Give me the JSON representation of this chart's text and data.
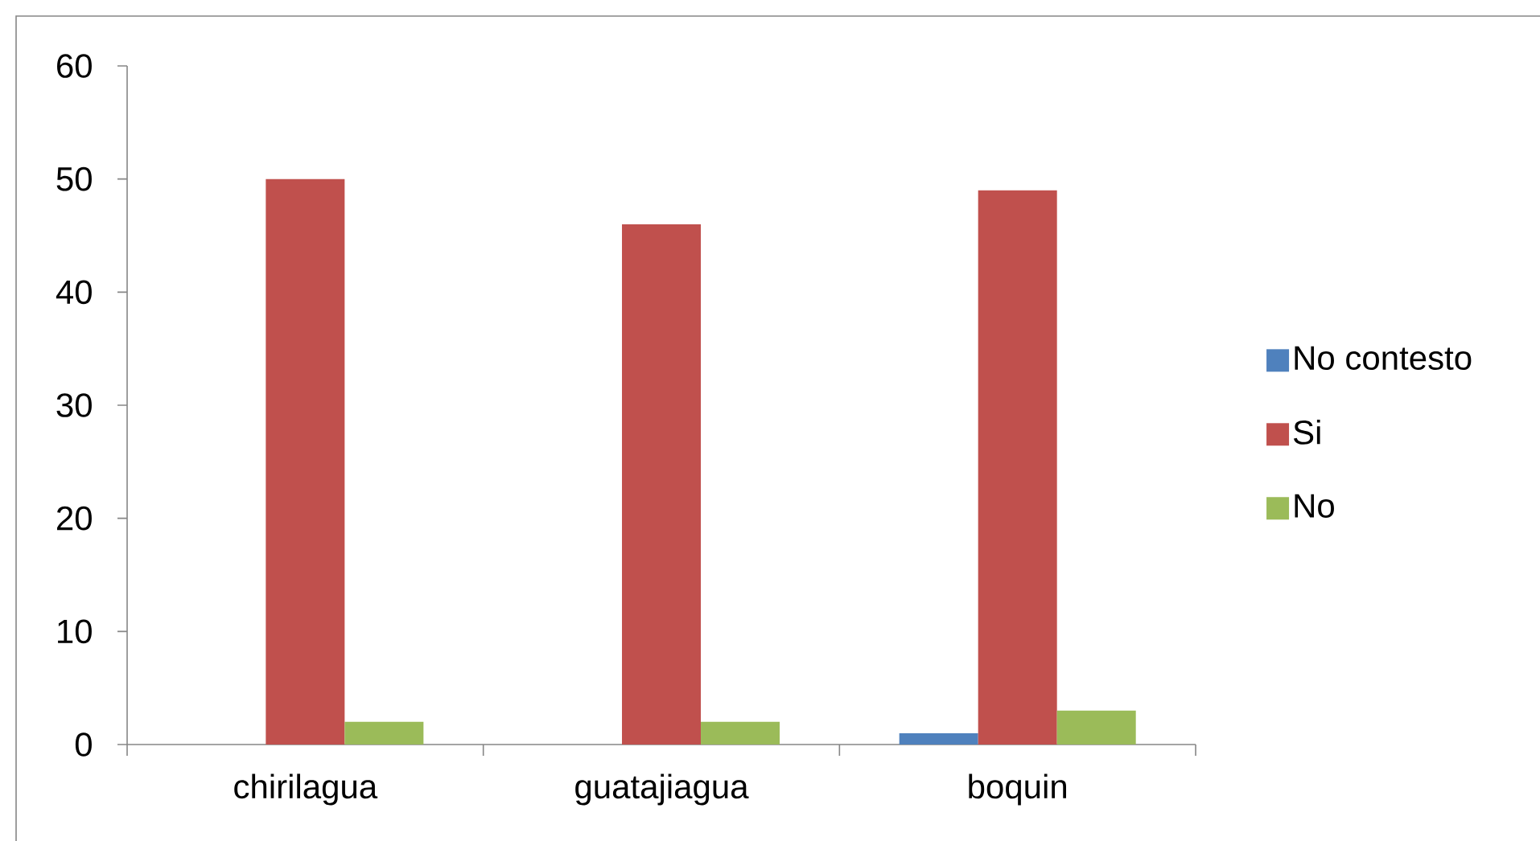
{
  "chart_data": {
    "type": "bar",
    "categories": [
      "chirilagua",
      "guatajiagua",
      "boquin"
    ],
    "series": [
      {
        "name": "No contesto",
        "color": "#4f81bd",
        "values": [
          0,
          0,
          1
        ]
      },
      {
        "name": "Si",
        "color": "#c0504d",
        "values": [
          50,
          46,
          49
        ]
      },
      {
        "name": "No",
        "color": "#9bbb59",
        "values": [
          2,
          2,
          3
        ]
      }
    ],
    "ylim": [
      0,
      60
    ],
    "yticks": [
      0,
      10,
      20,
      30,
      40,
      50,
      60
    ],
    "legend": "right"
  }
}
